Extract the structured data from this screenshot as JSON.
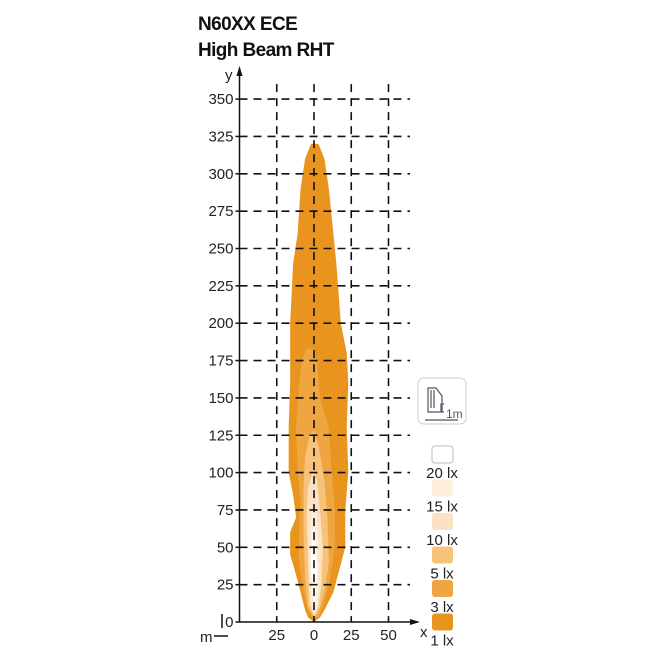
{
  "chart_data": {
    "type": "area",
    "title": "N60XX ECE",
    "subtitle": "High Beam RHT",
    "xlabel": "x",
    "ylabel": "y",
    "unit_label": "m",
    "xlim": [
      -50,
      60
    ],
    "ylim": [
      0,
      360
    ],
    "x_ticks": [
      -25,
      0,
      25,
      50
    ],
    "x_tick_labels": [
      "25",
      "0",
      "25",
      "50"
    ],
    "y_ticks": [
      0,
      25,
      50,
      75,
      100,
      125,
      150,
      175,
      200,
      225,
      250,
      275,
      300,
      325,
      350
    ],
    "grid": true,
    "legend_position": "right",
    "mount_icon_label": "1m",
    "series": [
      {
        "name": "1 lx",
        "color": "#E8941E",
        "polygon": [
          [
            0,
            0
          ],
          [
            -4,
            3
          ],
          [
            -6,
            8
          ],
          [
            -9,
            20
          ],
          [
            -13,
            35
          ],
          [
            -16,
            45
          ],
          [
            -16,
            60
          ],
          [
            -12,
            70
          ],
          [
            -14,
            85
          ],
          [
            -17,
            100
          ],
          [
            -17,
            130
          ],
          [
            -16,
            160
          ],
          [
            -16,
            200
          ],
          [
            -14,
            240
          ],
          [
            -11,
            260
          ],
          [
            -9,
            290
          ],
          [
            -6,
            310
          ],
          [
            -2,
            320
          ],
          [
            3,
            320
          ],
          [
            7,
            310
          ],
          [
            10,
            290
          ],
          [
            13,
            260
          ],
          [
            15,
            240
          ],
          [
            18,
            200
          ],
          [
            22,
            180
          ],
          [
            23,
            160
          ],
          [
            22,
            130
          ],
          [
            23,
            100
          ],
          [
            21,
            75
          ],
          [
            21,
            60
          ],
          [
            21,
            50
          ],
          [
            17,
            35
          ],
          [
            13,
            20
          ],
          [
            7,
            8
          ],
          [
            4,
            3
          ]
        ]
      },
      {
        "name": "3 lx",
        "color": "#F0A640",
        "polygon": [
          [
            0,
            2
          ],
          [
            -4,
            8
          ],
          [
            -7,
            20
          ],
          [
            -10,
            40
          ],
          [
            -10,
            60
          ],
          [
            -9,
            80
          ],
          [
            -11,
            100
          ],
          [
            -12,
            130
          ],
          [
            -10,
            160
          ],
          [
            -8,
            175
          ],
          [
            -5,
            183
          ],
          [
            -1,
            183
          ],
          [
            2,
            175
          ],
          [
            4,
            150
          ],
          [
            10,
            130
          ],
          [
            12,
            100
          ],
          [
            14,
            75
          ],
          [
            14,
            50
          ],
          [
            11,
            30
          ],
          [
            6,
            10
          ],
          [
            3,
            3
          ]
        ]
      },
      {
        "name": "5 lx",
        "color": "#F7C27A",
        "polygon": [
          [
            0,
            3
          ],
          [
            -4,
            10
          ],
          [
            -6,
            30
          ],
          [
            -7,
            60
          ],
          [
            -7,
            90
          ],
          [
            -6,
            110
          ],
          [
            -3,
            125
          ],
          [
            0,
            128
          ],
          [
            3,
            118
          ],
          [
            7,
            95
          ],
          [
            9,
            70
          ],
          [
            10,
            40
          ],
          [
            7,
            20
          ],
          [
            3,
            6
          ]
        ]
      },
      {
        "name": "10 lx",
        "color": "#FCE1C2",
        "polygon": [
          [
            0,
            4
          ],
          [
            -3,
            12
          ],
          [
            -4,
            40
          ],
          [
            -5,
            70
          ],
          [
            -4,
            90
          ],
          [
            -1,
            100
          ],
          [
            2,
            95
          ],
          [
            4,
            75
          ],
          [
            6,
            50
          ],
          [
            5,
            25
          ],
          [
            3,
            10
          ]
        ]
      },
      {
        "name": "15 lx",
        "color": "#FEEEDD",
        "polygon": [
          [
            0,
            5
          ],
          [
            -2,
            15
          ],
          [
            -3,
            45
          ],
          [
            -2,
            70
          ],
          [
            0,
            80
          ],
          [
            2,
            70
          ],
          [
            3,
            45
          ],
          [
            3,
            20
          ],
          [
            2,
            8
          ]
        ]
      },
      {
        "name": "20 lx",
        "color": "#FFFFFF",
        "polygon": [
          [
            0,
            6
          ],
          [
            -1,
            20
          ],
          [
            -2,
            45
          ],
          [
            -1,
            60
          ],
          [
            0,
            65
          ],
          [
            1,
            55
          ],
          [
            2,
            35
          ],
          [
            1,
            15
          ]
        ]
      }
    ]
  }
}
